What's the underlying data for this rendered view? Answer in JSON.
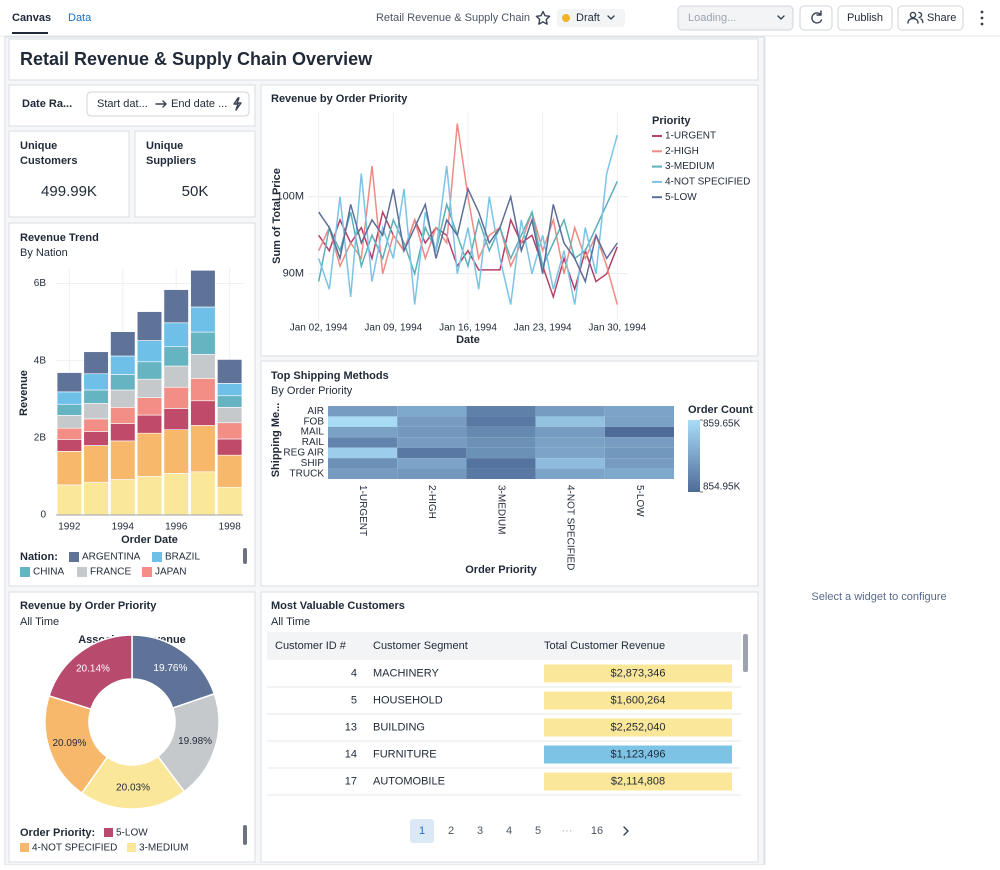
{
  "toolbar": {
    "tabs": [
      "Canvas",
      "Data"
    ],
    "dashboard_name": "Retail Revenue & Supply Chain",
    "status": "Draft",
    "warehouse": "Loading...",
    "publish": "Publish",
    "share": "Share"
  },
  "title": "Retail Revenue & Supply Chain Overview",
  "filter": {
    "label": "Date Ra...",
    "start": "Start dat...",
    "end": "End date ..."
  },
  "kpis": [
    {
      "label_lines": [
        "Unique",
        "Customers"
      ],
      "value": "499.99K"
    },
    {
      "label_lines": [
        "Unique",
        "Suppliers"
      ],
      "value": "50K"
    }
  ],
  "side_panel": "Select a widget to configure",
  "chart_data": [
    {
      "type": "line",
      "title": "Revenue by Order Priority",
      "x_label": "Date",
      "y_label": "Sum of Total Price",
      "legend_title": "Priority",
      "x": [
        "1994-01-02",
        "1994-01-03",
        "1994-01-04",
        "1994-01-05",
        "1994-01-06",
        "1994-01-07",
        "1994-01-08",
        "1994-01-09",
        "1994-01-10",
        "1994-01-11",
        "1994-01-12",
        "1994-01-13",
        "1994-01-14",
        "1994-01-15",
        "1994-01-16",
        "1994-01-17",
        "1994-01-18",
        "1994-01-19",
        "1994-01-20",
        "1994-01-21",
        "1994-01-22",
        "1994-01-23",
        "1994-01-24",
        "1994-01-25",
        "1994-01-26",
        "1994-01-27",
        "1994-01-28",
        "1994-01-29",
        "1994-01-30"
      ],
      "xlim": [
        "1994-01-01",
        "1994-01-31"
      ],
      "xticks": [
        {
          "value": "1994-01-02",
          "label": "Jan 02, 1994"
        },
        {
          "value": "1994-01-09",
          "label": "Jan 09, 1994"
        },
        {
          "value": "1994-01-16",
          "label": "Jan 16, 1994"
        },
        {
          "value": "1994-01-23",
          "label": "Jan 23, 1994"
        },
        {
          "value": "1994-01-30",
          "label": "Jan 30, 1994"
        }
      ],
      "ylim": [
        84000000.0,
        111000000.0
      ],
      "yticks": [
        {
          "value": 90000000.0,
          "label": "90M"
        },
        {
          "value": 100000000.0,
          "label": "100M"
        }
      ],
      "grid": true,
      "series": [
        {
          "name": "1-URGENT",
          "color": "#b5416a",
          "values": [
            95000000.0,
            93000000.0,
            97000000.0,
            94000000.0,
            96000000.0,
            92000000.0,
            98000000.0,
            95000000.0,
            93000000.0,
            97000000.0,
            94000000.0,
            96000000.0,
            95000000.0,
            91000000.0,
            93000000.0,
            90500000.0,
            90500000.0,
            90500000.0,
            97000000.0,
            94000000.0,
            95000000.0,
            91000000.0,
            87000000.0,
            92000000.0,
            88000000.0,
            93000000.0,
            89000000.0,
            90000000.0,
            93500000.0
          ]
        },
        {
          "name": "2-HIGH",
          "color": "#ef8b83",
          "values": [
            93000000.0,
            96000000.0,
            91000000.0,
            94000000.0,
            92000000.0,
            104000000.0,
            90000000.0,
            95000000.0,
            93000000.0,
            97000000.0,
            92000000.0,
            96000000.0,
            94000000.0,
            109500000.0,
            100000000.0,
            92000000.0,
            95000000.0,
            96000000.0,
            91000000.0,
            94000000.0,
            98000000.0,
            93000000.0,
            97000000.0,
            90000000.0,
            96000000.0,
            92000000.0,
            95000000.0,
            91000000.0,
            86000000.0
          ]
        },
        {
          "name": "3-MEDIUM",
          "color": "#5cb0b8",
          "values": [
            89000000.0,
            96000000.0,
            93000000.0,
            98000000.0,
            91000000.0,
            95000000.0,
            92000000.0,
            97000000.0,
            94000000.0,
            90000000.0,
            96000000.0,
            93000000.0,
            99000000.0,
            95000000.0,
            91000000.0,
            97000000.0,
            93000000.0,
            96000000.0,
            92000000.0,
            95000000.0,
            98000000.0,
            91000000.0,
            94000000.0,
            97000000.0,
            92000000.0,
            93000000.0,
            96000000.0,
            99000000.0,
            102000000.0
          ]
        },
        {
          "name": "4-NOT SPECIFIED",
          "color": "#7cc3e6",
          "values": [
            92000000.0,
            88000000.0,
            100000000.0,
            87000000.0,
            103000000.0,
            89000000.0,
            96000000.0,
            92000000.0,
            101000000.0,
            86000000.0,
            98000000.0,
            93000000.0,
            104000000.0,
            90000000.0,
            96000000.0,
            88000000.0,
            100000000.0,
            92000000.0,
            86000000.0,
            97000000.0,
            90000000.0,
            95000000.0,
            88000000.0,
            93000000.0,
            86000000.0,
            96000000.0,
            90000000.0,
            103000000.0,
            108000000.0
          ]
        },
        {
          "name": "5-LOW",
          "color": "#5d6e98",
          "values": [
            98000000.0,
            96000000.0,
            92000000.0,
            99000000.0,
            94000000.0,
            97000000.0,
            95000000.0,
            101000000.0,
            93000000.0,
            96000000.0,
            99000000.0,
            92000000.0,
            97000000.0,
            95000000.0,
            101000000.0,
            98000000.0,
            94000000.0,
            96000000.0,
            100000000.0,
            93000000.0,
            97000000.0,
            90000000.0,
            99000000.0,
            94000000.0,
            92000000.0,
            89000000.0,
            95000000.0,
            92000000.0,
            94000000.0
          ]
        }
      ]
    },
    {
      "type": "stacked_bar",
      "title": "Revenue Trend",
      "subtitle": "By Nation",
      "x_label": "Order Date",
      "y_label": "Revenue",
      "legend_title": "Nation:",
      "x": [
        1992,
        1993,
        1994,
        1995,
        1996,
        1997,
        1998
      ],
      "xlim": [
        1991.5,
        1998.5
      ],
      "xticks": [
        1992,
        1994,
        1996,
        1998
      ],
      "ylim": [
        0,
        6400000000.0
      ],
      "yticks": [
        0,
        {
          "value": 2000000000.0,
          "label": "2B"
        },
        {
          "value": 4000000000.0,
          "label": "4B"
        },
        {
          "value": 6000000000.0,
          "label": "6B"
        }
      ],
      "grid": true,
      "series": [
        {
          "name": "ARGENTINA",
          "color": "#5f7399",
          "values": [
            500000000.0,
            570000000.0,
            630000000.0,
            750000000.0,
            860000000.0,
            950000000.0,
            620000000.0
          ]
        },
        {
          "name": "BRAZIL",
          "color": "#6ec0e8",
          "values": [
            320000000.0,
            420000000.0,
            480000000.0,
            550000000.0,
            620000000.0,
            650000000.0,
            320000000.0
          ]
        },
        {
          "name": "CHINA",
          "color": "#66b3c2",
          "values": [
            290000000.0,
            350000000.0,
            400000000.0,
            450000000.0,
            500000000.0,
            580000000.0,
            300000000.0
          ]
        },
        {
          "name": "FRANCE",
          "color": "#c5c9cc",
          "values": [
            330000000.0,
            400000000.0,
            450000000.0,
            480000000.0,
            550000000.0,
            620000000.0,
            400000000.0
          ]
        },
        {
          "name": "JAPAN",
          "color": "#f28e86",
          "values": [
            290000000.0,
            330000000.0,
            420000000.0,
            450000000.0,
            550000000.0,
            580000000.0,
            420000000.0
          ]
        },
        {
          "color": "#c04a6a",
          "values": [
            310000000.0,
            360000000.0,
            450000000.0,
            470000000.0,
            550000000.0,
            640000000.0,
            420000000.0
          ]
        },
        {
          "color": "#f8b86c",
          "values": [
            870000000.0,
            950000000.0,
            1000000000.0,
            1120000000.0,
            1130000000.0,
            1200000000.0,
            830000000.0
          ]
        },
        {
          "color": "#fbe79a",
          "values": [
            780000000.0,
            850000000.0,
            920000000.0,
            1000000000.0,
            1080000000.0,
            1120000000.0,
            720000000.0
          ]
        }
      ]
    },
    {
      "type": "heatmap",
      "title": "Top Shipping Methods",
      "subtitle": "By Order Priority",
      "x_label": "Order Priority",
      "y_label": "Shipping Me...",
      "legend_title": "Order Count",
      "x": [
        "1-URGENT",
        "2-HIGH",
        "3-MEDIUM",
        "4-NOT SPECIFIED",
        "5-LOW"
      ],
      "y": [
        "AIR",
        "FOB",
        "MAIL",
        "RAIL",
        "REG AIR",
        "SHIP",
        "TRUCK"
      ],
      "values": [
        [
          857000,
          857500,
          855800,
          857000,
          857300
        ],
        [
          859600,
          857000,
          855500,
          858500,
          857200
        ],
        [
          857200,
          856800,
          856200,
          857000,
          855000
        ],
        [
          856000,
          857000,
          856500,
          857200,
          857000
        ],
        [
          859000,
          855500,
          856500,
          857300,
          856800
        ],
        [
          856500,
          857300,
          855300,
          858300,
          857000
        ],
        [
          857000,
          856800,
          855500,
          857300,
          857500
        ]
      ],
      "zlim": [
        854950,
        859650
      ],
      "zticks": [
        {
          "value": 859650,
          "label": "859.65K"
        },
        {
          "value": 854950,
          "label": "854.95K"
        }
      ],
      "colors": [
        "#4e6b98",
        "#a9ddf7"
      ]
    },
    {
      "type": "donut",
      "title": "Revenue by Order Priority",
      "subtitle": "All Time",
      "center_title": "Associated Revenue",
      "legend_title": "Order Priority:",
      "categories": [
        null,
        null,
        "3-MEDIUM",
        "4-NOT SPECIFIED",
        "5-LOW"
      ],
      "values": [
        19.76,
        19.98,
        20.03,
        20.09,
        20.14
      ],
      "value_labels": [
        "19.76%",
        "19.98%",
        "20.03%",
        "20.09%",
        "20.14%"
      ],
      "colors": [
        "#5f7399",
        "#c5c9cc",
        "#fbe79a",
        "#f8b86c",
        "#b84a6e"
      ]
    }
  ],
  "table": {
    "title": "Most Valuable Customers",
    "subtitle": "All Time",
    "columns": [
      "Customer ID #",
      "Customer Segment",
      "Total Customer Revenue"
    ],
    "rows": [
      [
        4,
        "MACHINERY",
        "$2,873,346"
      ],
      [
        5,
        "HOUSEHOLD",
        "$1,600,264"
      ],
      [
        13,
        "BUILDING",
        "$2,252,040"
      ],
      [
        14,
        "FURNITURE",
        "$1,123,496"
      ],
      [
        17,
        "AUTOMOBILE",
        "$2,114,808"
      ]
    ],
    "revenue_colors": [
      "#fbe79a",
      "#fbe79a",
      "#fbe79a",
      "#7cc3e6",
      "#fbe79a"
    ]
  },
  "pagination": {
    "pages": [
      1,
      2,
      3,
      4,
      5
    ],
    "ellipsis": "···",
    "last": 16
  }
}
